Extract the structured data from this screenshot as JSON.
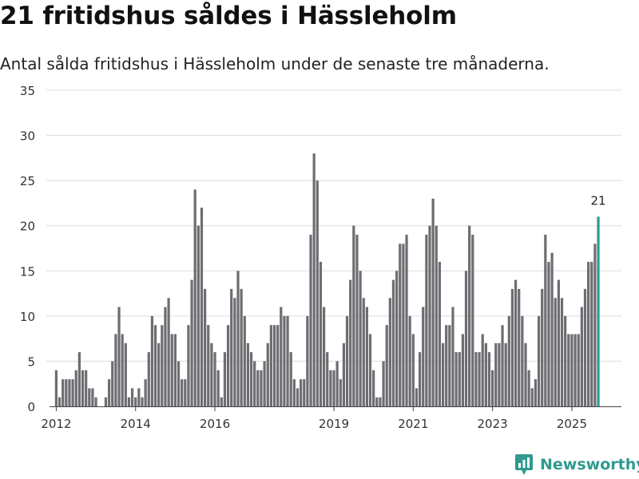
{
  "chart_data": {
    "type": "bar",
    "title": "21 fritidshus såldes i Hässleholm",
    "subtitle": "Antal sålda fritidshus i Hässleholm under de senaste tre månaderna.",
    "xlabel": "",
    "ylabel": "",
    "ylim": [
      0,
      35
    ],
    "yticks": [
      0,
      5,
      10,
      15,
      20,
      25,
      30,
      35
    ],
    "grid": true,
    "x_domain": [
      2011.75,
      2026.25
    ],
    "xticks": [
      {
        "label": "2012",
        "value": 2012
      },
      {
        "label": "2014",
        "value": 2014
      },
      {
        "label": "2016",
        "value": 2016
      },
      {
        "label": "2019",
        "value": 2019
      },
      {
        "label": "2021",
        "value": 2021
      },
      {
        "label": "2023",
        "value": 2023
      },
      {
        "label": "2025",
        "value": 2025
      }
    ],
    "start": {
      "year": 2012,
      "month": 1
    },
    "frequency": "monthly",
    "values": [
      4,
      1,
      3,
      3,
      3,
      3,
      4,
      6,
      4,
      4,
      2,
      2,
      1,
      0,
      0,
      1,
      3,
      5,
      8,
      11,
      8,
      7,
      1,
      2,
      1,
      2,
      1,
      3,
      6,
      10,
      9,
      7,
      9,
      11,
      12,
      8,
      8,
      5,
      3,
      3,
      9,
      14,
      24,
      20,
      22,
      13,
      9,
      7,
      6,
      4,
      1,
      6,
      9,
      13,
      12,
      15,
      13,
      10,
      7,
      6,
      5,
      4,
      4,
      5,
      7,
      9,
      9,
      9,
      11,
      10,
      10,
      6,
      3,
      2,
      3,
      3,
      10,
      19,
      28,
      25,
      16,
      11,
      6,
      4,
      4,
      5,
      3,
      7,
      10,
      14,
      20,
      19,
      15,
      12,
      11,
      8,
      4,
      1,
      1,
      5,
      9,
      12,
      14,
      15,
      18,
      18,
      19,
      10,
      8,
      2,
      6,
      11,
      19,
      20,
      23,
      20,
      16,
      7,
      9,
      9,
      11,
      6,
      6,
      8,
      15,
      20,
      19,
      6,
      6,
      8,
      7,
      6,
      4,
      7,
      7,
      9,
      7,
      10,
      13,
      14,
      13,
      10,
      7,
      4,
      2,
      3,
      10,
      13,
      19,
      16,
      17,
      12,
      14,
      12,
      10,
      8,
      8,
      8,
      8,
      11,
      13,
      16,
      16,
      18,
      21
    ],
    "highlight": {
      "index": 164,
      "label": "21",
      "color": "#2a9d94"
    },
    "bar_color": "#6e6d72"
  },
  "brand": {
    "name": "Newsworthy",
    "icon": "newsworthy-logo-icon",
    "color": "#2f9a8f"
  }
}
